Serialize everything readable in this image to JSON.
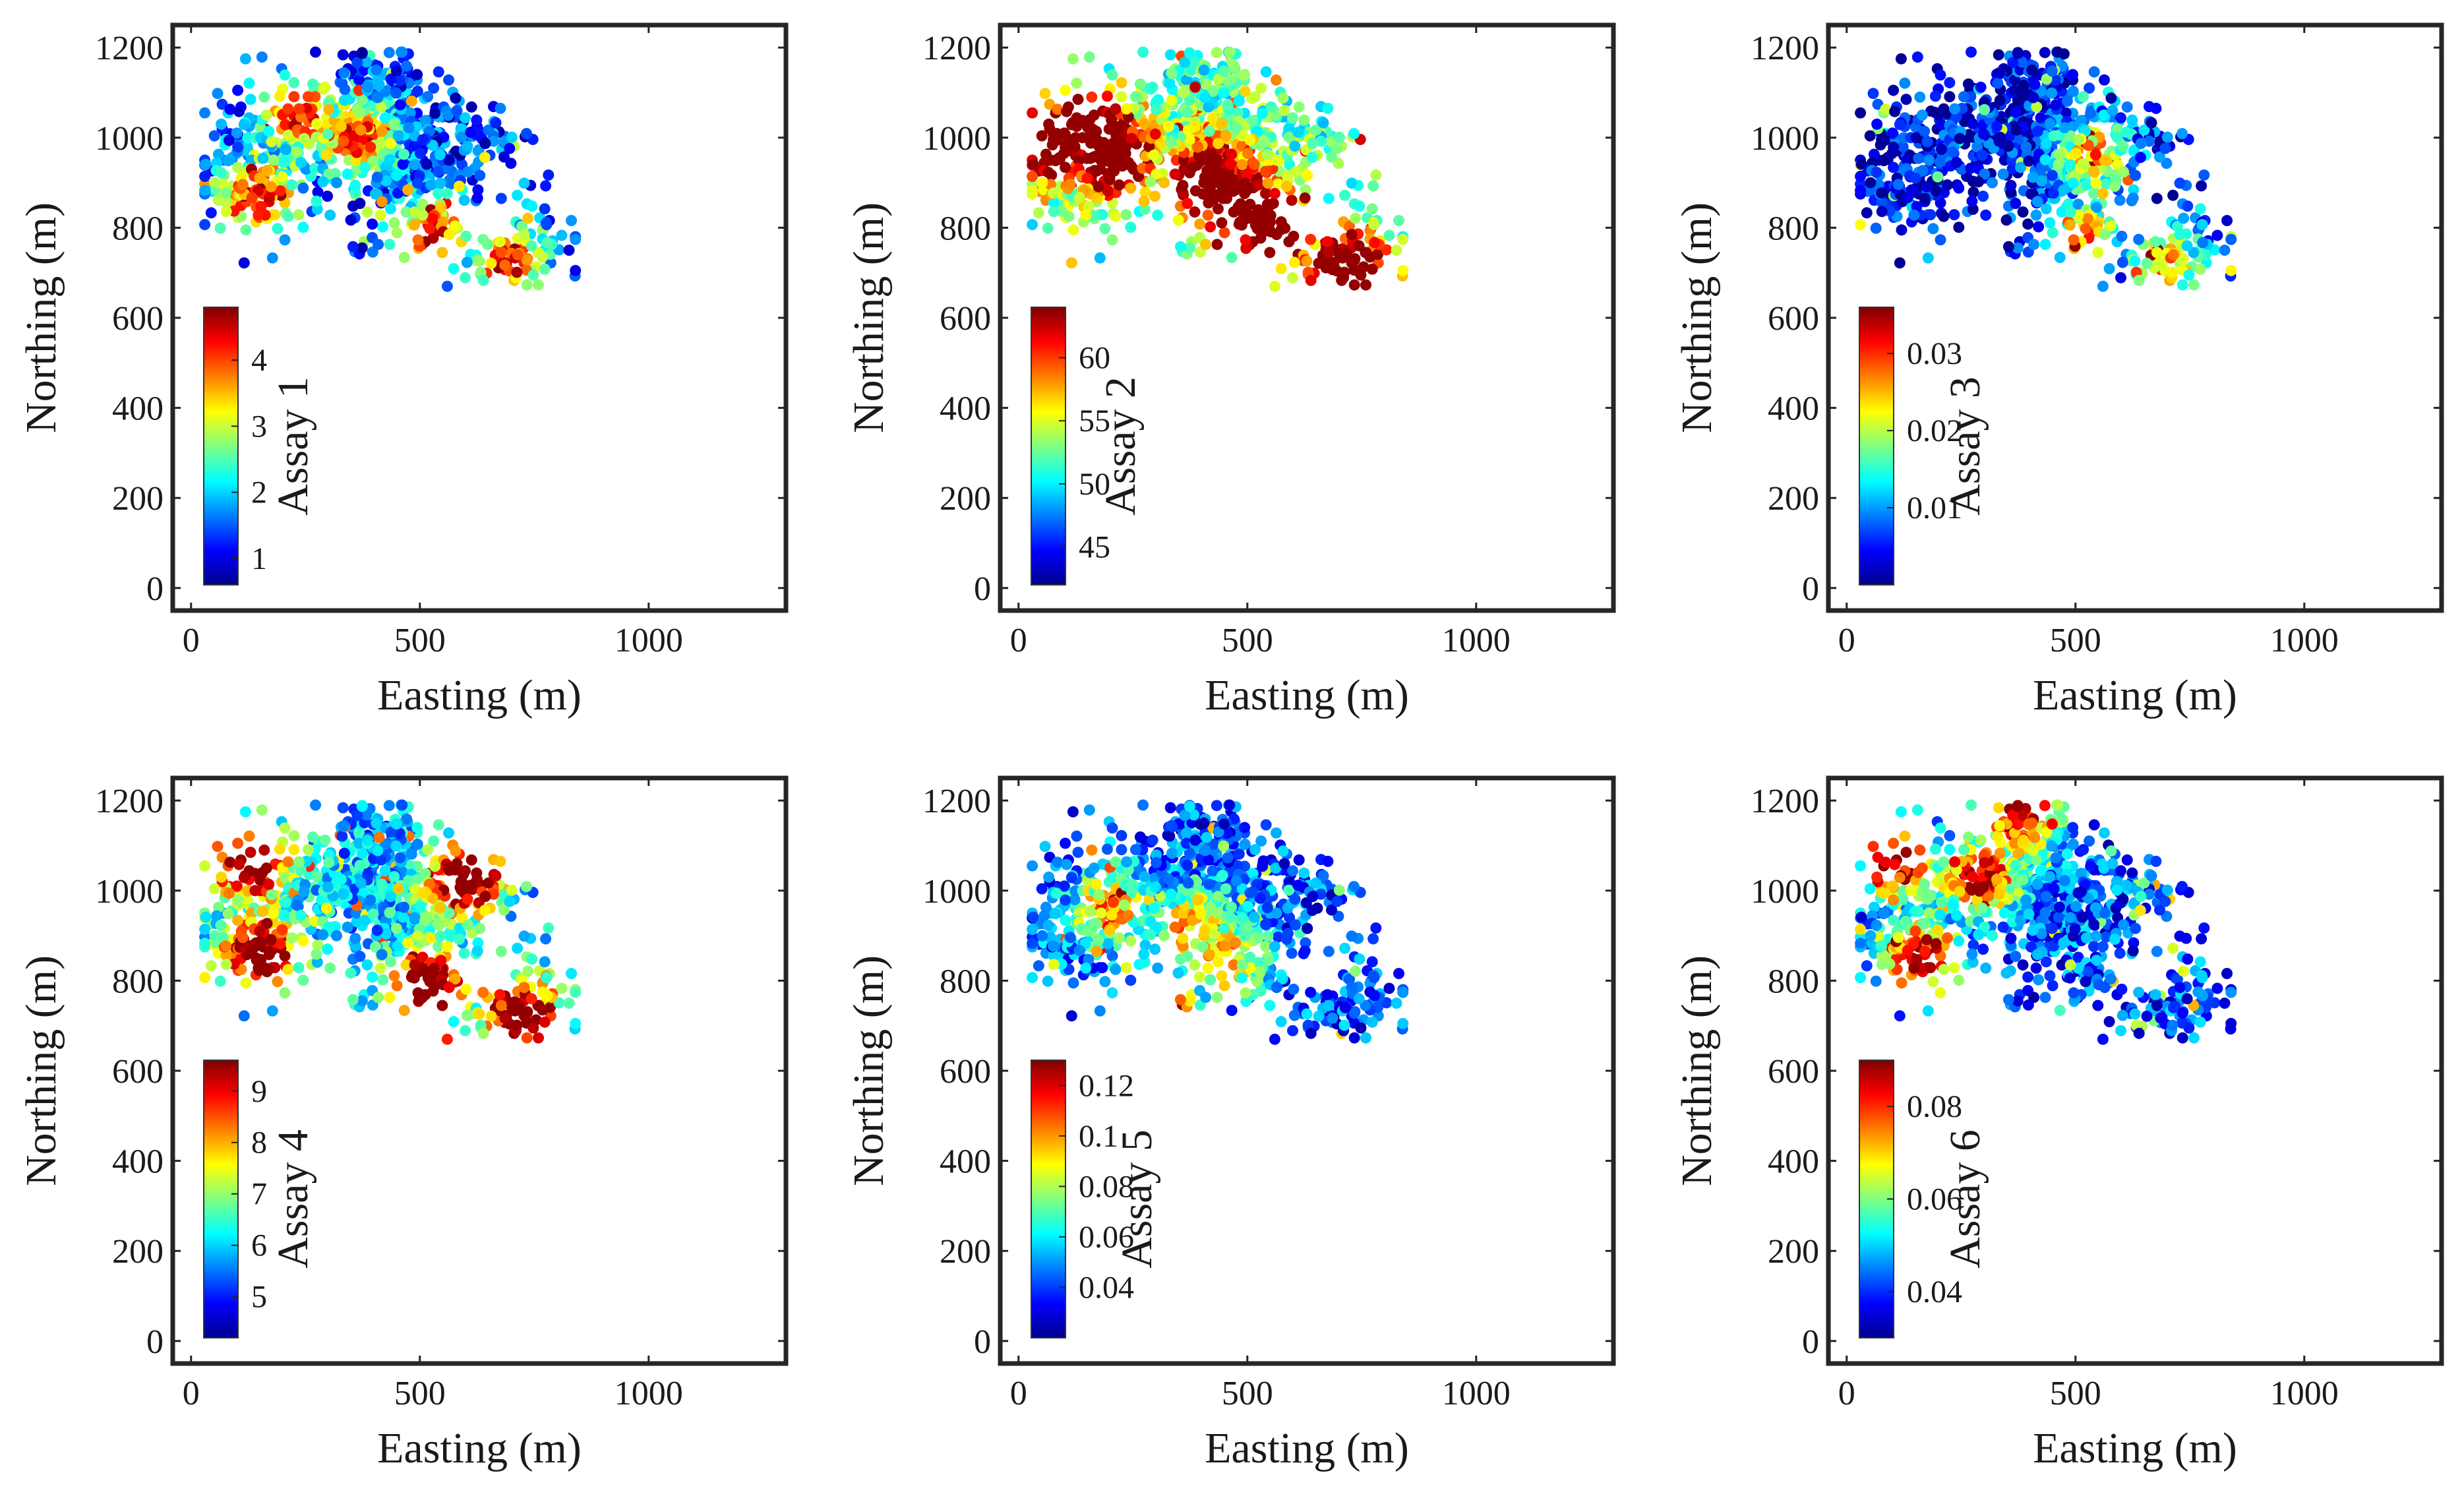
{
  "chart_data": [
    {
      "type": "scatter",
      "title": "",
      "xlabel": "Easting (m)",
      "ylabel": "Northing (m)",
      "xlim": [
        -40,
        1300
      ],
      "ylim": [
        -50,
        1250
      ],
      "xticks": [
        "0",
        "500",
        "1000"
      ],
      "yticks": [
        "0",
        "200",
        "400",
        "600",
        "800",
        "1000",
        "1200"
      ],
      "colorbar": {
        "label": "Assay 1",
        "range": [
          0.6,
          4.8
        ],
        "ticks": [
          "1",
          "2",
          "3",
          "4"
        ],
        "colormap": "jet"
      },
      "high_zones": [
        [
          150,
          870
        ],
        [
          360,
          1000
        ],
        [
          530,
          780
        ],
        [
          690,
          720
        ],
        [
          240,
          1050
        ]
      ],
      "hot_intensity": 0.7,
      "base_level": 0.18,
      "seed": 11
    },
    {
      "type": "scatter",
      "title": "",
      "xlabel": "Easting (m)",
      "ylabel": "Northing (m)",
      "xlim": [
        -40,
        1300
      ],
      "ylim": [
        -50,
        1250
      ],
      "xticks": [
        "0",
        "500",
        "1000"
      ],
      "yticks": [
        "0",
        "200",
        "400",
        "600",
        "800",
        "1000",
        "1200"
      ],
      "colorbar": {
        "label": "Assay 2",
        "range": [
          42,
          64
        ],
        "ticks": [
          "45",
          "50",
          "55",
          "60"
        ],
        "colormap": "jet"
      },
      "high_zones": [
        [
          80,
          990
        ],
        [
          200,
          960
        ],
        [
          420,
          900
        ],
        [
          480,
          850
        ],
        [
          720,
          700
        ],
        [
          150,
          1020
        ],
        [
          560,
          800
        ]
      ],
      "hot_intensity": 0.95,
      "base_level": 0.45,
      "seed": 23
    },
    {
      "type": "scatter",
      "title": "",
      "xlabel": "Easting (m)",
      "ylabel": "Northing (m)",
      "xlim": [
        -40,
        1300
      ],
      "ylim": [
        -50,
        1250
      ],
      "xticks": [
        "0",
        "500",
        "1000"
      ],
      "yticks": [
        "0",
        "200",
        "400",
        "600",
        "800",
        "1000",
        "1200"
      ],
      "colorbar": {
        "label": "Assay 3",
        "range": [
          0.0,
          0.036
        ],
        "ticks": [
          "0.01",
          "0.02",
          "0.03"
        ],
        "colormap": "jet"
      },
      "high_zones": [
        [
          520,
          780
        ],
        [
          540,
          960
        ],
        [
          700,
          720
        ]
      ],
      "hot_intensity": 0.6,
      "base_level": 0.12,
      "seed": 37
    },
    {
      "type": "scatter",
      "title": "",
      "xlabel": "Easting (m)",
      "ylabel": "Northing (m)",
      "xlim": [
        -40,
        1300
      ],
      "ylim": [
        -50,
        1250
      ],
      "xticks": [
        "0",
        "500",
        "1000"
      ],
      "yticks": [
        "0",
        "200",
        "400",
        "600",
        "800",
        "1000",
        "1200"
      ],
      "colorbar": {
        "label": "Assay 4",
        "range": [
          4.2,
          9.6
        ],
        "ticks": [
          "5",
          "6",
          "7",
          "8",
          "9"
        ],
        "colormap": "jet"
      },
      "high_zones": [
        [
          150,
          860
        ],
        [
          130,
          1060
        ],
        [
          520,
          790
        ],
        [
          720,
          720
        ],
        [
          600,
          1030
        ]
      ],
      "hot_intensity": 0.85,
      "base_level": 0.3,
      "seed": 41
    },
    {
      "type": "scatter",
      "title": "",
      "xlabel": "Easting (m)",
      "ylabel": "Northing (m)",
      "xlim": [
        -40,
        1300
      ],
      "ylim": [
        -50,
        1250
      ],
      "xticks": [
        "0",
        "500",
        "1000"
      ],
      "yticks": [
        "0",
        "200",
        "400",
        "600",
        "800",
        "1000",
        "1200"
      ],
      "colorbar": {
        "label": "Assay 5",
        "range": [
          0.02,
          0.13
        ],
        "ticks": [
          "0.04",
          "0.06",
          "0.08",
          "0.1",
          "0.12"
        ],
        "colormap": "jet"
      },
      "high_zones": [
        [
          200,
          960
        ],
        [
          450,
          850
        ],
        [
          380,
          920
        ],
        [
          330,
          740
        ]
      ],
      "hot_intensity": 0.55,
      "base_level": 0.2,
      "seed": 53
    },
    {
      "type": "scatter",
      "title": "",
      "xlabel": "Easting (m)",
      "ylabel": "Northing (m)",
      "xlim": [
        -40,
        1300
      ],
      "ylim": [
        -50,
        1250
      ],
      "xticks": [
        "0",
        "500",
        "1000"
      ],
      "yticks": [
        "0",
        "200",
        "400",
        "600",
        "800",
        "1000",
        "1200"
      ],
      "colorbar": {
        "label": "Assay 6",
        "range": [
          0.03,
          0.09
        ],
        "ticks": [
          "0.04",
          "0.06",
          "0.08"
        ],
        "colormap": "jet"
      },
      "high_zones": [
        [
          110,
          1070
        ],
        [
          380,
          1170
        ],
        [
          160,
          850
        ],
        [
          290,
          1030
        ]
      ],
      "hot_intensity": 0.8,
      "base_level": 0.2,
      "seed": 67
    }
  ]
}
